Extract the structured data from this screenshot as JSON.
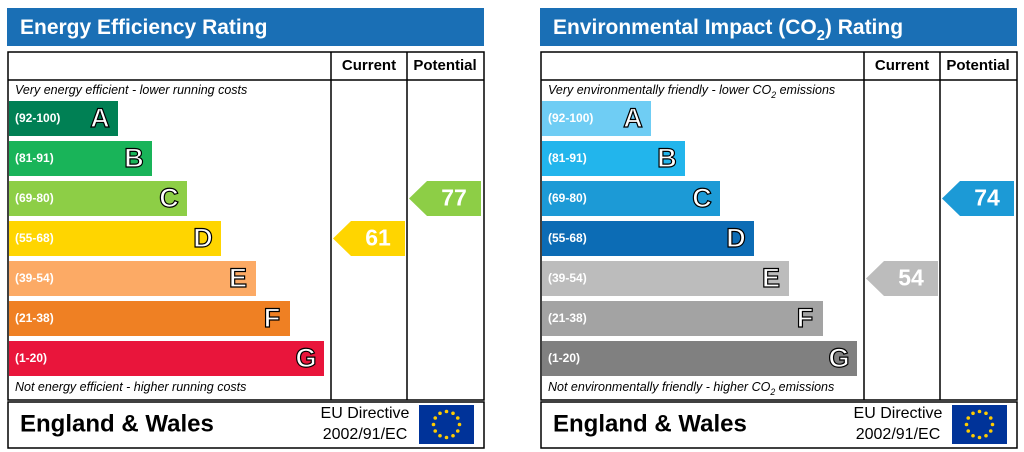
{
  "panels": [
    {
      "title": [
        "Energy Efficiency Rating"
      ],
      "columns": [
        "Current",
        "Potential"
      ],
      "top_note": [
        "Very energy efficient - lower running costs"
      ],
      "bottom_note": [
        "Not energy efficient - higher running costs"
      ],
      "bands": [
        {
          "range": "(92-100)",
          "letter": "A",
          "color": "#008054"
        },
        {
          "range": "(81-91)",
          "letter": "B",
          "color": "#19b459"
        },
        {
          "range": "(69-80)",
          "letter": "C",
          "color": "#8dce46"
        },
        {
          "range": "(55-68)",
          "letter": "D",
          "color": "#ffd500"
        },
        {
          "range": "(39-54)",
          "letter": "E",
          "color": "#fcaa65"
        },
        {
          "range": "(21-38)",
          "letter": "F",
          "color": "#ef8023"
        },
        {
          "range": "(1-20)",
          "letter": "G",
          "color": "#e9153b"
        }
      ],
      "current": 61,
      "potential": 77,
      "region": "England & Wales",
      "directive": [
        "EU Directive",
        "2002/91/EC"
      ]
    },
    {
      "title": [
        "Environmental Impact (CO",
        "2",
        ") Rating"
      ],
      "columns": [
        "Current",
        "Potential"
      ],
      "top_note": [
        "Very environmentally friendly - lower CO",
        "2",
        " emissions"
      ],
      "bottom_note": [
        "Not environmentally friendly - higher CO",
        "2",
        " emissions"
      ],
      "bands": [
        {
          "range": "(92-100)",
          "letter": "A",
          "color": "#6fcdf4"
        },
        {
          "range": "(81-91)",
          "letter": "B",
          "color": "#22b5ec"
        },
        {
          "range": "(69-80)",
          "letter": "C",
          "color": "#1c9ad6"
        },
        {
          "range": "(55-68)",
          "letter": "D",
          "color": "#0c6cb5"
        },
        {
          "range": "(39-54)",
          "letter": "E",
          "color": "#bcbcbc"
        },
        {
          "range": "(21-38)",
          "letter": "F",
          "color": "#a3a3a3"
        },
        {
          "range": "(1-20)",
          "letter": "G",
          "color": "#808080"
        }
      ],
      "current": 54,
      "potential": 74,
      "region": "England & Wales",
      "directive": [
        "EU Directive",
        "2002/91/EC"
      ]
    }
  ]
}
